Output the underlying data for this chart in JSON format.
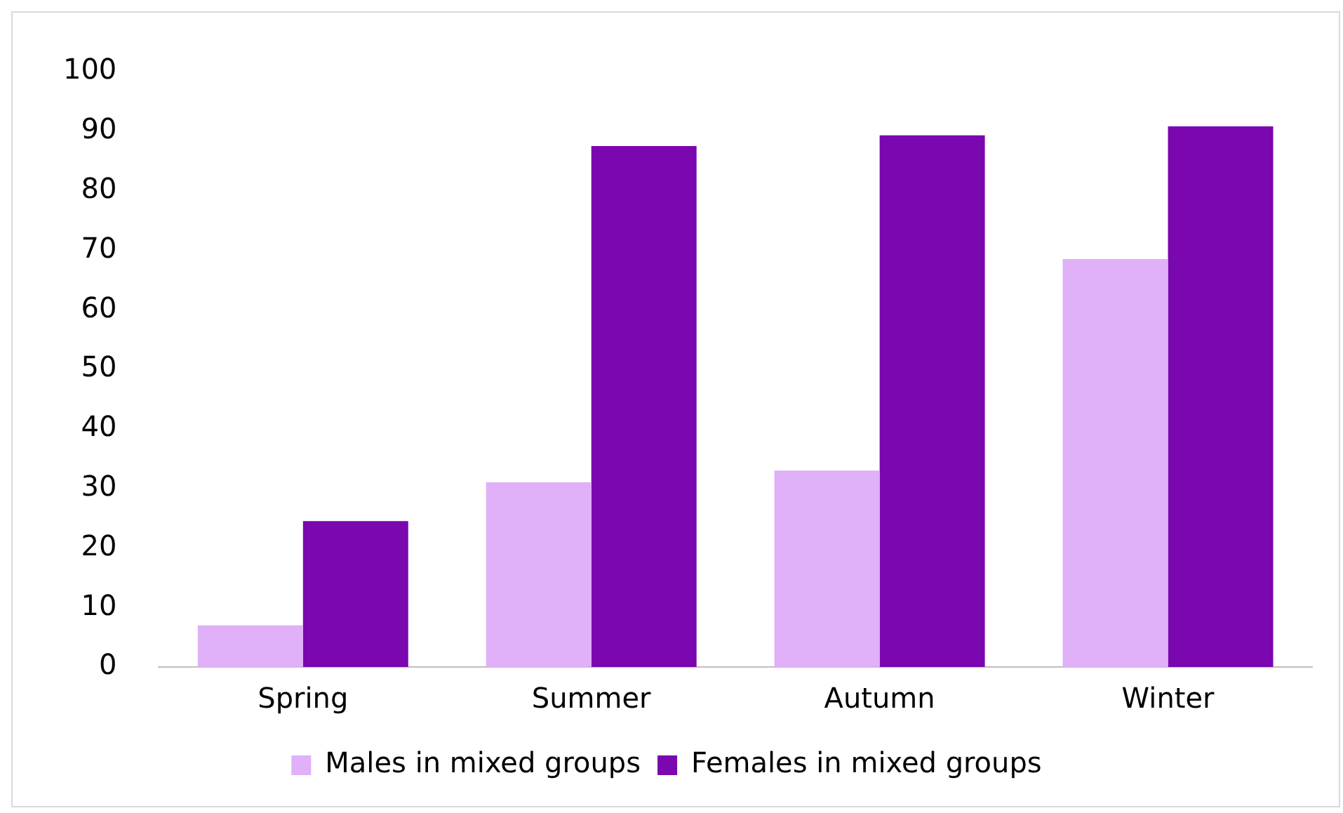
{
  "chart_data": {
    "type": "bar",
    "categories": [
      "Spring",
      "Summer",
      "Autumn",
      "Winter"
    ],
    "series": [
      {
        "name": "Males in mixed groups",
        "color": "#e0b0f8",
        "values": [
          7,
          31,
          33,
          68.5
        ]
      },
      {
        "name": "Females in mixed groups",
        "color": "#7b07b0",
        "values": [
          24.5,
          87.5,
          89.3,
          90.8
        ]
      }
    ],
    "ylim": [
      0,
      100
    ],
    "yticks": [
      0,
      10,
      20,
      30,
      40,
      50,
      60,
      70,
      80,
      90,
      100
    ],
    "grid": false,
    "legend": "bottom"
  }
}
